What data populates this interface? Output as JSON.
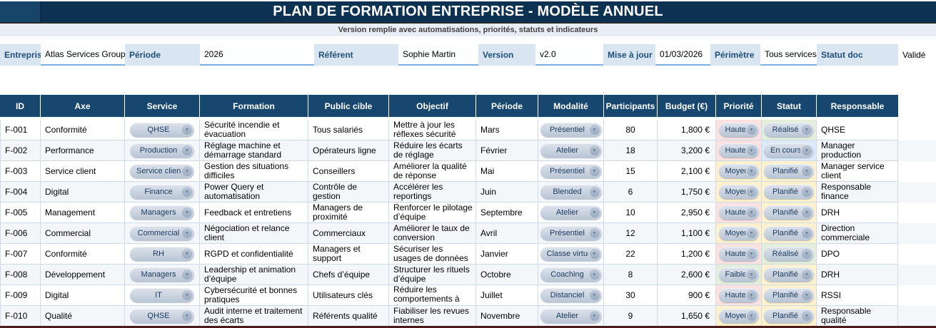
{
  "title": "PLAN DE FORMATION ENTREPRISE - MODÈLE ANNUEL",
  "subtitle": "Version remplie avec automatisations, priorités, statuts et indicateurs",
  "meta": {
    "fields": [
      {
        "label": "Entreprise",
        "value": "Atlas Services Groupe"
      },
      {
        "label": "Période",
        "value": "2026"
      },
      {
        "label": "Référent",
        "value": "Sophie Martin"
      },
      {
        "label": "Version",
        "value": "v2.0"
      },
      {
        "label": "Mise à jour",
        "value": "01/03/2026"
      },
      {
        "label": "Périmètre",
        "value": "Tous services"
      },
      {
        "label": "Statut doc",
        "value": "Validé"
      }
    ]
  },
  "table": {
    "columns": [
      "ID",
      "Axe",
      "Service",
      "Formation",
      "Public cible",
      "Objectif",
      "Période",
      "Modalité",
      "Participants",
      "Budget (€)",
      "Priorité",
      "Statut",
      "Responsable"
    ],
    "rows": [
      {
        "id": "F-001",
        "axe": "Conformité",
        "service": "QHSE",
        "formation": "Sécurité incendie et évacuation",
        "public_cible": "Tous salariés",
        "objectif": "Mettre à jour les réflexes sécurité",
        "periode": "Mars",
        "modalite": "Présentiel",
        "participants": "80",
        "budget": "1,800 €",
        "priorite": "Haute",
        "statut": "Réalisé",
        "responsable": "QHSE"
      },
      {
        "id": "F-002",
        "axe": "Performance",
        "service": "Production",
        "formation": "Réglage machine et démarrage standard",
        "public_cible": "Opérateurs ligne",
        "objectif": "Réduire les écarts de réglage",
        "periode": "Février",
        "modalite": "Atelier",
        "participants": "18",
        "budget": "3,200 €",
        "priorite": "Haute",
        "statut": "En cours",
        "responsable": "Manager production"
      },
      {
        "id": "F-003",
        "axe": "Service client",
        "service": "Service client",
        "formation": "Gestion des situations difficiles",
        "public_cible": "Conseillers",
        "objectif": "Améliorer la qualité de réponse",
        "periode": "Mai",
        "modalite": "Présentiel",
        "participants": "15",
        "budget": "2,100 €",
        "priorite": "Moyenne",
        "statut": "Planifié",
        "responsable": "Manager service client"
      },
      {
        "id": "F-004",
        "axe": "Digital",
        "service": "Finance",
        "formation": "Power Query et automatisation",
        "public_cible": "Contrôle de gestion",
        "objectif": "Accélérer les reportings",
        "periode": "Juin",
        "modalite": "Blended",
        "participants": "6",
        "budget": "1,750 €",
        "priorite": "Moyenne",
        "statut": "Planifié",
        "responsable": "Responsable finance"
      },
      {
        "id": "F-005",
        "axe": "Management",
        "service": "Managers",
        "formation": "Feedback et entretiens",
        "public_cible": "Managers de proximité",
        "objectif": "Renforcer le pilotage d’équipe",
        "periode": "Septembre",
        "modalite": "Atelier",
        "participants": "10",
        "budget": "2,950 €",
        "priorite": "Haute",
        "statut": "Planifié",
        "responsable": "DRH"
      },
      {
        "id": "F-006",
        "axe": "Commercial",
        "service": "Commercial",
        "formation": "Négociation et relance client",
        "public_cible": "Commerciaux",
        "objectif": "Améliorer le taux de conversion",
        "periode": "Avril",
        "modalite": "Présentiel",
        "participants": "12",
        "budget": "1,100 €",
        "priorite": "Moyenne",
        "statut": "Planifié",
        "responsable": "Direction commerciale"
      },
      {
        "id": "F-007",
        "axe": "Conformité",
        "service": "RH",
        "formation": "RGPD et confidentialité",
        "public_cible": "Managers et support",
        "objectif": "Sécuriser les usages de données",
        "periode": "Janvier",
        "modalite": "Classe virtuelle",
        "participants": "22",
        "budget": "1,200 €",
        "priorite": "Haute",
        "statut": "Réalisé",
        "responsable": "DPO"
      },
      {
        "id": "F-008",
        "axe": "Développement",
        "service": "Managers",
        "formation": "Leadership et animation d’équipe",
        "public_cible": "Chefs d’équipe",
        "objectif": "Structurer les rituels d’équipe",
        "periode": "Octobre",
        "modalite": "Coaching",
        "participants": "8",
        "budget": "2,600 €",
        "priorite": "Faible",
        "statut": "Planifié",
        "responsable": "DRH"
      },
      {
        "id": "F-009",
        "axe": "Digital",
        "service": "IT",
        "formation": "Cybersécurité et bonnes pratiques",
        "public_cible": "Utilisateurs clés",
        "objectif": "Réduire les comportements à risque",
        "periode": "Juillet",
        "modalite": "Distanciel",
        "participants": "30",
        "budget": "900 €",
        "priorite": "Haute",
        "statut": "Planifié",
        "responsable": "RSSI"
      },
      {
        "id": "F-010",
        "axe": "Qualité",
        "service": "QHSE",
        "formation": "Audit interne et traitement des écarts",
        "public_cible": "Référents qualité",
        "objectif": "Fiabiliser les revues internes",
        "periode": "Novembre",
        "modalite": "Atelier",
        "participants": "9",
        "budget": "1,650 €",
        "priorite": "Moyenne",
        "statut": "Planifié",
        "responsable": "Responsable qualité"
      }
    ]
  },
  "colors": {
    "title_bar_navy": "#0d3251",
    "header_navy": "#17466f",
    "meta_label_blue": "#d9e6f2",
    "meta_underline_blue": "#7fafdf",
    "priority": {
      "Haute": "#fbe1df",
      "Moyenne": "#fdf2cd",
      "Faible": "#e3efda"
    },
    "status": {
      "Réalisé": "#e3efda",
      "En cours": "#dce9f6",
      "Planifié": "#fdf2cd"
    }
  },
  "icons": {
    "dropdown_arrow": "▼"
  }
}
